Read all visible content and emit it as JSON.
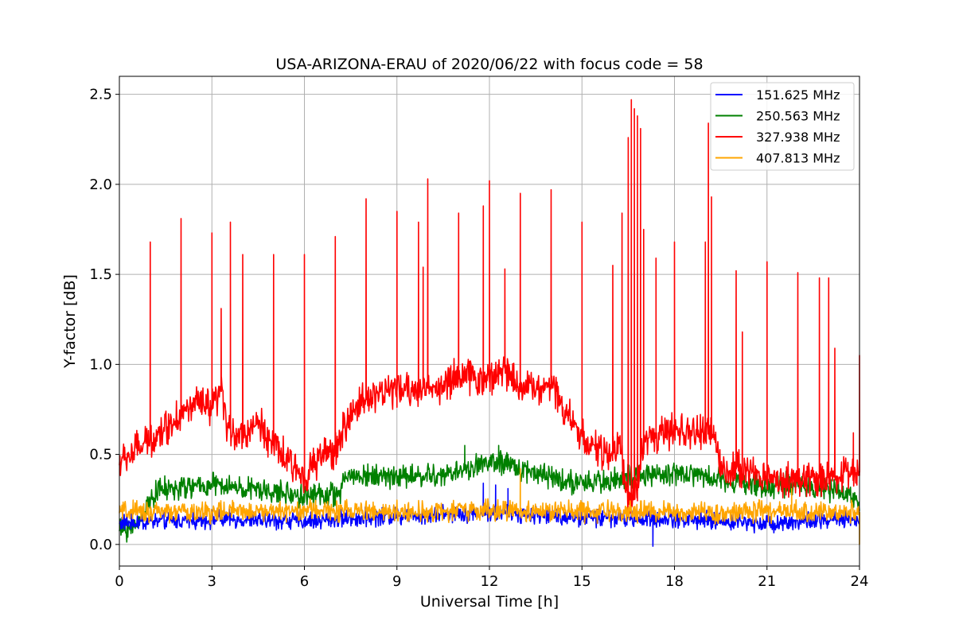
{
  "chart_data": {
    "type": "line",
    "title": "USA-ARIZONA-ERAU of 2020/06/22 with focus code = 58",
    "xlabel": "Universal Time [h]",
    "ylabel": "Y-factor [dB]",
    "xlim": [
      0,
      24
    ],
    "ylim": [
      -0.12,
      2.6
    ],
    "xticks": [
      0,
      3,
      6,
      9,
      12,
      15,
      18,
      21,
      24
    ],
    "yticks": [
      0.0,
      0.5,
      1.0,
      1.5,
      2.0,
      2.5
    ],
    "xtick_labels": [
      "0",
      "3",
      "6",
      "9",
      "12",
      "15",
      "18",
      "21",
      "24"
    ],
    "ytick_labels": [
      "0.0",
      "0.5",
      "1.0",
      "1.5",
      "2.0",
      "2.5"
    ],
    "grid": true,
    "legend_position": "top-right",
    "series": [
      {
        "name": "151.625 MHz",
        "color": "#0000ff",
        "baseline": [
          [
            0,
            0.12
          ],
          [
            3,
            0.14
          ],
          [
            6,
            0.13
          ],
          [
            9,
            0.16
          ],
          [
            12,
            0.18
          ],
          [
            15,
            0.15
          ],
          [
            18,
            0.14
          ],
          [
            21,
            0.12
          ],
          [
            24,
            0.14
          ]
        ],
        "noise": 0.06,
        "spikes": [
          [
            11.8,
            0.34
          ],
          [
            12.2,
            0.33
          ],
          [
            12.6,
            0.31
          ],
          [
            17.3,
            -0.01
          ]
        ]
      },
      {
        "name": "250.563 MHz",
        "color": "#008000",
        "baseline": [
          [
            0,
            0.08
          ],
          [
            0.5,
            0.1
          ],
          [
            1.2,
            0.3
          ],
          [
            3,
            0.33
          ],
          [
            4.5,
            0.3
          ],
          [
            6,
            0.27
          ],
          [
            7.2,
            0.28
          ],
          [
            7.3,
            0.38
          ],
          [
            9,
            0.38
          ],
          [
            10.5,
            0.38
          ],
          [
            11.3,
            0.42
          ],
          [
            12,
            0.46
          ],
          [
            13,
            0.42
          ],
          [
            14,
            0.38
          ],
          [
            15,
            0.33
          ],
          [
            16,
            0.36
          ],
          [
            17,
            0.38
          ],
          [
            18,
            0.4
          ],
          [
            19,
            0.38
          ],
          [
            20,
            0.35
          ],
          [
            21,
            0.32
          ],
          [
            22,
            0.34
          ],
          [
            23,
            0.3
          ],
          [
            24,
            0.25
          ]
        ],
        "noise": 0.08,
        "spikes": [
          [
            11.2,
            0.55
          ],
          [
            12.3,
            0.55
          ],
          [
            12.6,
            0.5
          ]
        ]
      },
      {
        "name": "327.938 MHz",
        "color": "#ff0000",
        "baseline": [
          [
            0,
            0.45
          ],
          [
            0.5,
            0.52
          ],
          [
            1,
            0.58
          ],
          [
            2,
            0.72
          ],
          [
            2.5,
            0.78
          ],
          [
            3,
            0.75
          ],
          [
            3.3,
            0.85
          ],
          [
            3.5,
            0.65
          ],
          [
            4,
            0.6
          ],
          [
            4.5,
            0.68
          ],
          [
            5,
            0.55
          ],
          [
            5.5,
            0.45
          ],
          [
            6,
            0.38
          ],
          [
            6.5,
            0.48
          ],
          [
            7,
            0.52
          ],
          [
            7.3,
            0.65
          ],
          [
            7.8,
            0.8
          ],
          [
            8.5,
            0.85
          ],
          [
            9.5,
            0.86
          ],
          [
            10.5,
            0.88
          ],
          [
            11,
            0.95
          ],
          [
            11.5,
            0.92
          ],
          [
            12,
            0.92
          ],
          [
            12.5,
            0.98
          ],
          [
            13,
            0.88
          ],
          [
            14,
            0.88
          ],
          [
            14.3,
            0.8
          ],
          [
            15,
            0.6
          ],
          [
            15.5,
            0.52
          ],
          [
            16,
            0.5
          ],
          [
            16.3,
            0.55
          ],
          [
            16.4,
            0.25
          ],
          [
            16.8,
            0.3
          ],
          [
            17,
            0.58
          ],
          [
            18,
            0.62
          ],
          [
            19,
            0.62
          ],
          [
            19.3,
            0.6
          ],
          [
            19.5,
            0.42
          ],
          [
            20,
            0.42
          ],
          [
            21,
            0.38
          ],
          [
            22,
            0.35
          ],
          [
            23,
            0.38
          ],
          [
            24,
            0.4
          ]
        ],
        "noise": 0.12,
        "spikes": [
          [
            1.0,
            1.68
          ],
          [
            2.0,
            1.81
          ],
          [
            3.0,
            1.73
          ],
          [
            3.3,
            1.31
          ],
          [
            3.6,
            1.79
          ],
          [
            4.0,
            1.61
          ],
          [
            5.0,
            1.61
          ],
          [
            6.0,
            1.61
          ],
          [
            7.0,
            1.71
          ],
          [
            8.0,
            1.92
          ],
          [
            9.0,
            1.85
          ],
          [
            9.7,
            1.79
          ],
          [
            9.85,
            1.54
          ],
          [
            10.0,
            2.03
          ],
          [
            11.0,
            1.84
          ],
          [
            11.8,
            1.88
          ],
          [
            12.0,
            2.02
          ],
          [
            12.5,
            1.53
          ],
          [
            13.0,
            1.95
          ],
          [
            14.0,
            1.97
          ],
          [
            15.0,
            1.79
          ],
          [
            16.0,
            1.55
          ],
          [
            16.3,
            1.84
          ],
          [
            16.5,
            2.26
          ],
          [
            16.6,
            2.47
          ],
          [
            16.7,
            2.42
          ],
          [
            16.8,
            2.38
          ],
          [
            16.9,
            2.31
          ],
          [
            17.0,
            1.75
          ],
          [
            17.4,
            1.59
          ],
          [
            18.0,
            1.68
          ],
          [
            19.0,
            1.68
          ],
          [
            19.1,
            2.34
          ],
          [
            19.2,
            1.93
          ],
          [
            20.0,
            1.52
          ],
          [
            20.2,
            1.18
          ],
          [
            21.0,
            1.57
          ],
          [
            22.0,
            1.51
          ],
          [
            22.7,
            1.48
          ],
          [
            23.0,
            1.48
          ],
          [
            23.2,
            1.09
          ],
          [
            23.8,
            0.62
          ],
          [
            24.0,
            1.05
          ]
        ]
      },
      {
        "name": "407.813 MHz",
        "color": "#ffa500",
        "baseline": [
          [
            0,
            0.18
          ],
          [
            3,
            0.18
          ],
          [
            6,
            0.19
          ],
          [
            9,
            0.18
          ],
          [
            12,
            0.19
          ],
          [
            15,
            0.18
          ],
          [
            18,
            0.18
          ],
          [
            21,
            0.18
          ],
          [
            24,
            0.18
          ]
        ],
        "noise": 0.07,
        "spikes": [
          [
            13.0,
            0.42
          ],
          [
            21.8,
            0.31
          ],
          [
            24.0,
            0.0
          ]
        ]
      }
    ]
  }
}
